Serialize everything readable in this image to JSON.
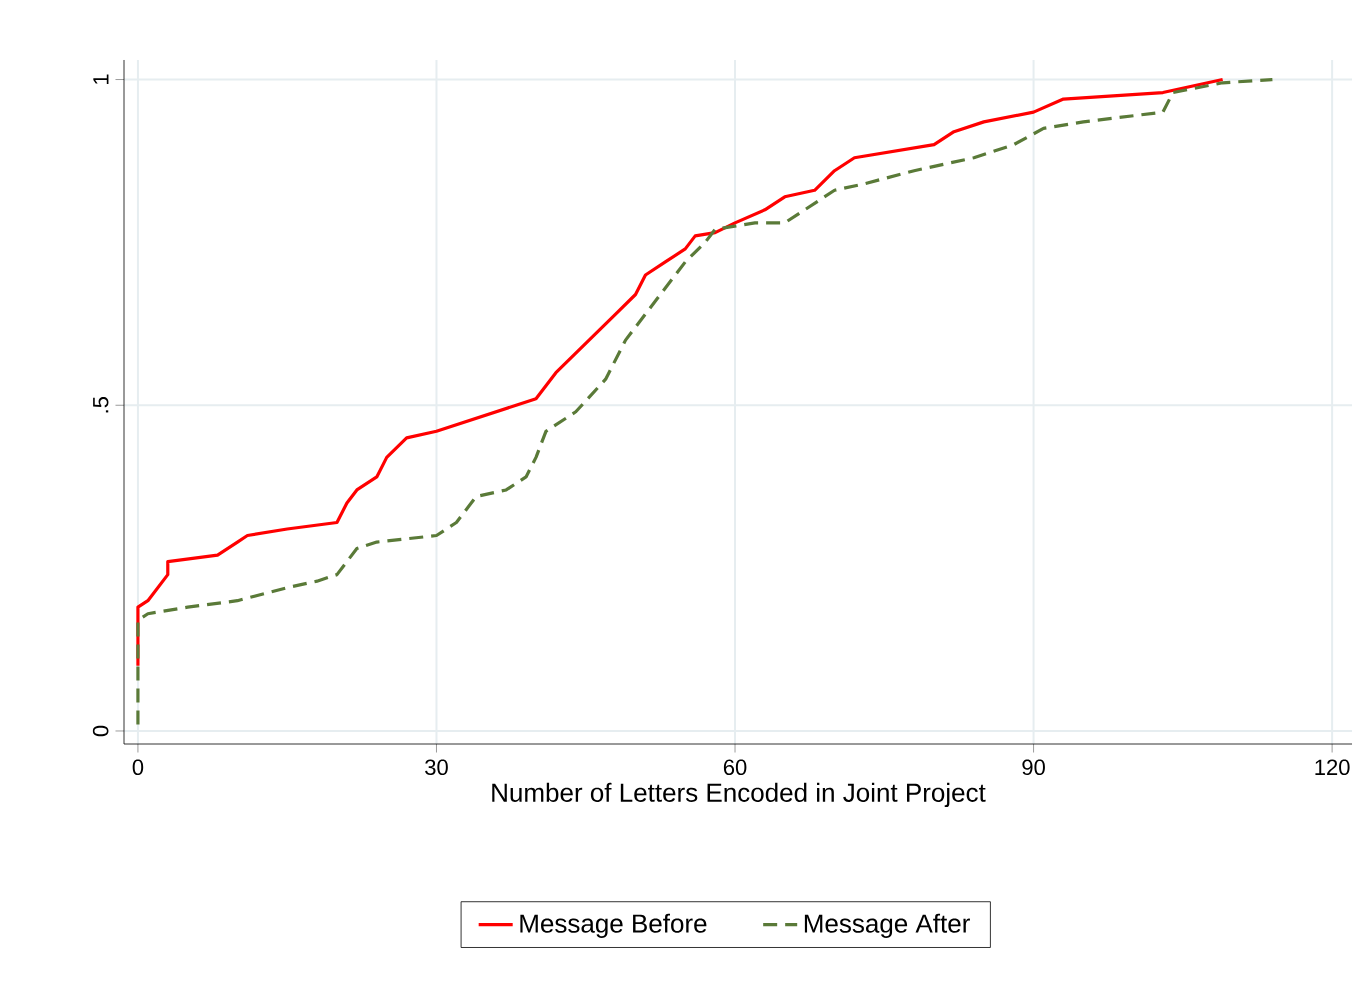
{
  "chart_data": {
    "type": "line",
    "xlabel": "Number of Letters Encoded in Joint Project",
    "xlim": [
      -1.4,
      122
    ],
    "ylim": [
      -0.02,
      1.03
    ],
    "xticks": [
      0,
      30,
      60,
      90,
      120
    ],
    "yticks": [
      0,
      {
        "value": 0.5,
        "label": ".5"
      },
      1
    ],
    "grid": true,
    "legend": "bottom",
    "series": [
      {
        "name": "Message Before",
        "color": "#ff0000",
        "line_style": "solid",
        "x": [
          0,
          0,
          1,
          2,
          3,
          3,
          8,
          10,
          11,
          15,
          20,
          21,
          22,
          24,
          25,
          27,
          30,
          34,
          38,
          40,
          42,
          44,
          46,
          48,
          50,
          51,
          53,
          55,
          56,
          58,
          60,
          63,
          65,
          68,
          70,
          71,
          72,
          76,
          80,
          82,
          85,
          90,
          93,
          103,
          106,
          109
        ],
        "values": [
          0.1,
          0.19,
          0.2,
          0.22,
          0.24,
          0.26,
          0.27,
          0.29,
          0.3,
          0.31,
          0.32,
          0.35,
          0.37,
          0.39,
          0.42,
          0.45,
          0.46,
          0.48,
          0.5,
          0.51,
          0.55,
          0.58,
          0.61,
          0.64,
          0.67,
          0.7,
          0.72,
          0.74,
          0.76,
          0.765,
          0.78,
          0.8,
          0.82,
          0.83,
          0.86,
          0.87,
          0.88,
          0.89,
          0.9,
          0.92,
          0.935,
          0.95,
          0.97,
          0.98,
          0.99,
          1.0
        ]
      },
      {
        "name": "Message After",
        "color": "#5a7a38",
        "line_style": "dashed",
        "x": [
          0,
          0,
          1,
          5,
          10,
          15,
          18,
          20,
          22,
          24,
          30,
          32,
          34,
          37,
          39,
          40,
          41,
          44,
          47,
          49,
          51,
          53,
          55,
          57,
          58,
          62,
          65,
          67,
          70,
          73,
          78,
          84,
          88,
          91,
          95,
          103,
          104,
          109,
          114
        ],
        "values": [
          0.01,
          0.17,
          0.18,
          0.19,
          0.2,
          0.22,
          0.23,
          0.24,
          0.28,
          0.29,
          0.3,
          0.32,
          0.36,
          0.37,
          0.39,
          0.42,
          0.46,
          0.49,
          0.54,
          0.6,
          0.64,
          0.68,
          0.72,
          0.75,
          0.77,
          0.78,
          0.78,
          0.8,
          0.83,
          0.84,
          0.86,
          0.88,
          0.9,
          0.925,
          0.935,
          0.95,
          0.98,
          0.995,
          1.0
        ]
      }
    ]
  }
}
